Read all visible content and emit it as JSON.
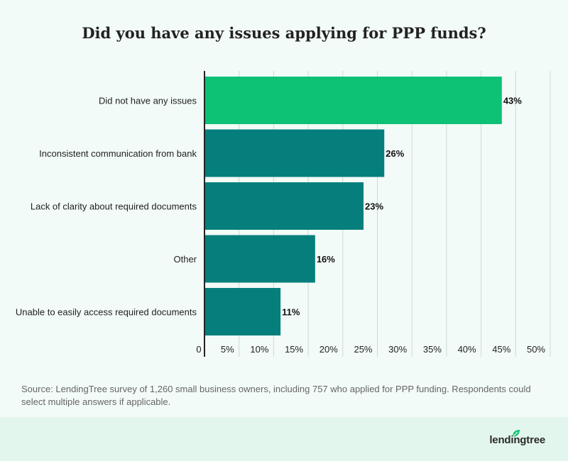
{
  "title": "Did you have any issues applying for PPP funds?",
  "source": "Source: LendingTree survey of 1,260 small business owners, including 757 who applied for PPP funding. Respondents could select multiple answers if applicable.",
  "brand": "lendingtree",
  "colors": {
    "highlight": "#0dc275",
    "bar": "#067f7c",
    "grid": "#cfd9d4",
    "axis": "#222222"
  },
  "chart_data": {
    "type": "bar",
    "orientation": "horizontal",
    "categories": [
      "Did not have any issues",
      "Inconsistent communication from bank",
      "Lack of clarity about required documents",
      "Other",
      "Unable to easily access required documents"
    ],
    "values": [
      43,
      26,
      23,
      16,
      11
    ],
    "value_labels": [
      "43%",
      "26%",
      "23%",
      "16%",
      "11%"
    ],
    "xlim": [
      0,
      50
    ],
    "xticks": [
      "0",
      "5%",
      "10%",
      "15%",
      "20%",
      "25%",
      "30%",
      "35%",
      "40%",
      "45%",
      "50%"
    ],
    "grid": true
  }
}
